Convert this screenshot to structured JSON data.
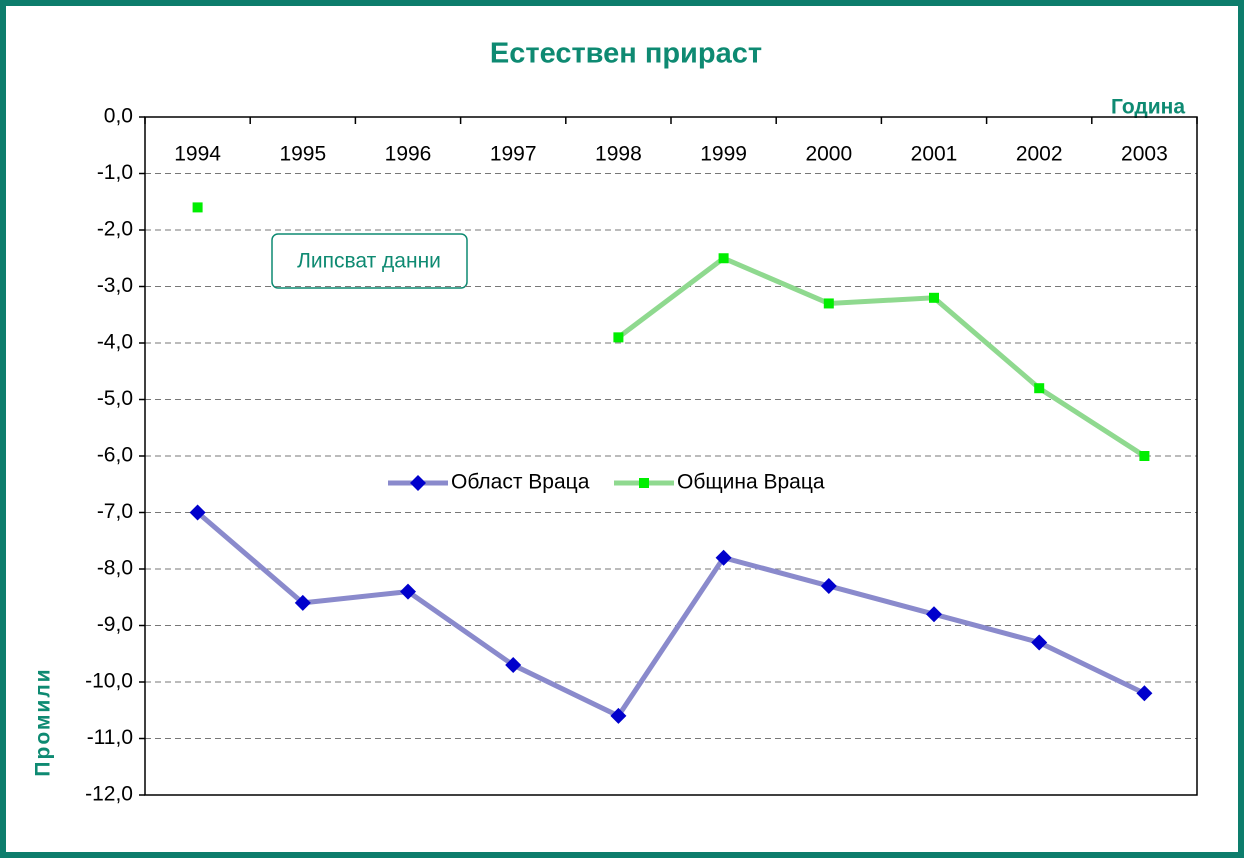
{
  "chart_data": {
    "type": "line",
    "title": "Естествен прираст",
    "x_label": "Година",
    "y_label": "Промили",
    "annotation": "Липсват данни",
    "categories": [
      "1994",
      "1995",
      "1996",
      "1997",
      "1998",
      "1999",
      "2000",
      "2001",
      "2002",
      "2003"
    ],
    "series": [
      {
        "name": "Област Враца",
        "color": "#0000cc",
        "values": [
          -7.0,
          -8.6,
          -8.4,
          -9.7,
          -10.6,
          -7.8,
          -8.3,
          -8.8,
          -9.3,
          -10.2
        ]
      },
      {
        "name": "Община Враца",
        "color": "#00ee00",
        "values": [
          -1.6,
          null,
          null,
          null,
          -3.9,
          -2.5,
          -3.3,
          -3.2,
          -4.8,
          -6.0
        ]
      }
    ],
    "ylim": [
      -12,
      0
    ],
    "yticks": [
      {
        "value": 0,
        "label": "0,0"
      },
      {
        "value": -1,
        "label": "-1,0"
      },
      {
        "value": -2,
        "label": "-2,0"
      },
      {
        "value": -3,
        "label": "-3,0"
      },
      {
        "value": -4,
        "label": "-4,0"
      },
      {
        "value": -5,
        "label": "-5,0"
      },
      {
        "value": -6,
        "label": "-6,0"
      },
      {
        "value": -7,
        "label": "-7,0"
      },
      {
        "value": -8,
        "label": "-8,0"
      },
      {
        "value": -9,
        "label": "-9,0"
      },
      {
        "value": -10,
        "label": "-10,0"
      },
      {
        "value": -11,
        "label": "-11,0"
      },
      {
        "value": -12,
        "label": "-12,0"
      }
    ],
    "grid": true
  }
}
